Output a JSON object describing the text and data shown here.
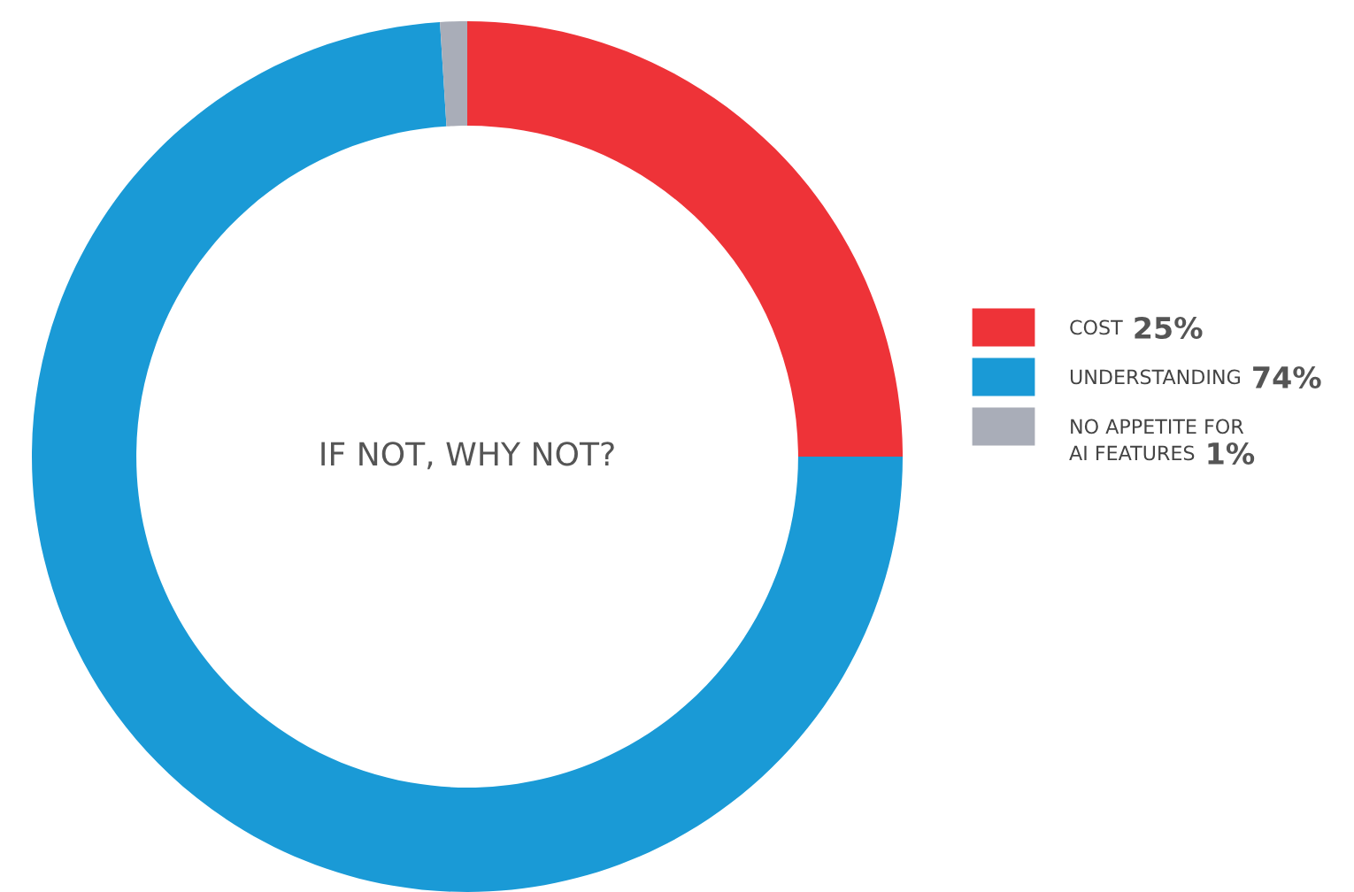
{
  "chart_data": {
    "type": "donut",
    "title": "IF NOT, WHY NOT?",
    "categories": [
      "COST",
      "UNDERSTANDING",
      "NO APPETITE FOR\nAI FEATURES"
    ],
    "values": [
      25,
      74,
      1
    ],
    "value_labels": [
      "25%",
      "74%",
      "1%"
    ],
    "colors": [
      "#ee3338",
      "#1a9ad6",
      "#a9adb8"
    ],
    "legend": "right"
  }
}
